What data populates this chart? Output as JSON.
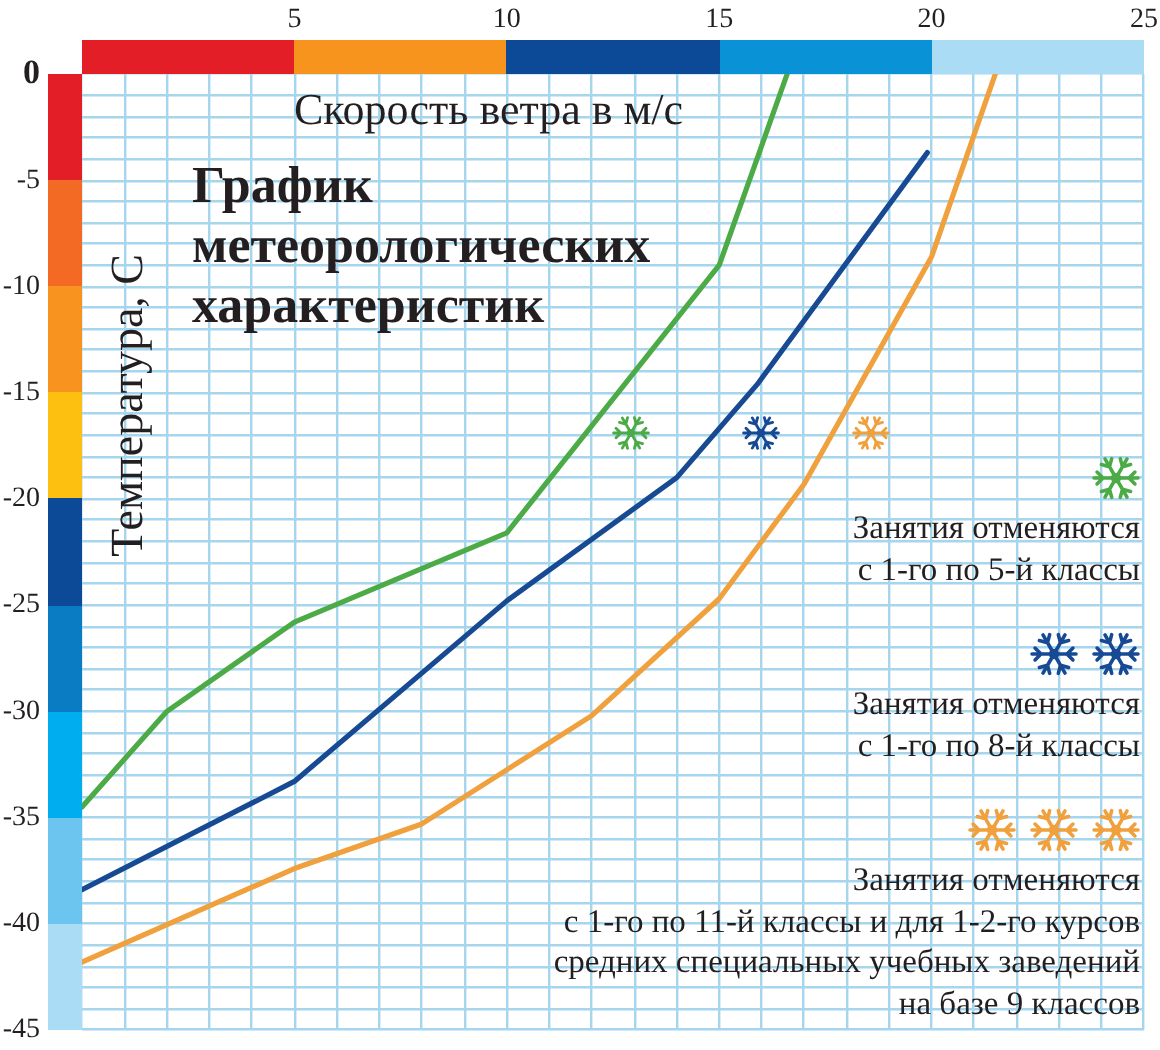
{
  "chart_data": {
    "type": "line",
    "title": "График\nметеорологических\nхарактеристик",
    "xlabel": "Скорость ветра в м/с",
    "ylabel": "Температура, С",
    "xlim": [
      0,
      25
    ],
    "xticks": [
      {
        "value": 0,
        "label": null
      },
      {
        "value": 1,
        "label": null
      },
      {
        "value": 2,
        "label": null
      },
      {
        "value": 3,
        "label": null
      },
      {
        "value": 4,
        "label": null
      },
      5,
      {
        "value": 6,
        "label": null
      },
      {
        "value": 7,
        "label": null
      },
      {
        "value": 8,
        "label": null
      },
      {
        "value": 9,
        "label": null
      },
      10,
      {
        "value": 11,
        "label": null
      },
      {
        "value": 12,
        "label": null
      },
      {
        "value": 13,
        "label": null
      },
      {
        "value": 14,
        "label": null
      },
      15,
      {
        "value": 16,
        "label": null
      },
      {
        "value": 17,
        "label": null
      },
      {
        "value": 18,
        "label": null
      },
      {
        "value": 19,
        "label": null
      },
      20,
      {
        "value": 21,
        "label": null
      },
      {
        "value": 22,
        "label": null
      },
      {
        "value": 23,
        "label": null
      },
      {
        "value": 24,
        "label": null
      },
      25
    ],
    "ylim": [
      -45,
      0
    ],
    "yticks": [
      0,
      {
        "value": -1,
        "label": null
      },
      {
        "value": -2,
        "label": null
      },
      {
        "value": -3,
        "label": null
      },
      {
        "value": -4,
        "label": null
      },
      -5,
      {
        "value": -6,
        "label": null
      },
      {
        "value": -7,
        "label": null
      },
      {
        "value": -8,
        "label": null
      },
      {
        "value": -9,
        "label": null
      },
      -10,
      {
        "value": -11,
        "label": null
      },
      {
        "value": -12,
        "label": null
      },
      {
        "value": -13,
        "label": null
      },
      {
        "value": -14,
        "label": null
      },
      -15,
      {
        "value": -16,
        "label": null
      },
      {
        "value": -17,
        "label": null
      },
      {
        "value": -18,
        "label": null
      },
      {
        "value": -19,
        "label": null
      },
      -20,
      {
        "value": -21,
        "label": null
      },
      {
        "value": -22,
        "label": null
      },
      {
        "value": -23,
        "label": null
      },
      {
        "value": -24,
        "label": null
      },
      -25,
      {
        "value": -26,
        "label": null
      },
      {
        "value": -27,
        "label": null
      },
      {
        "value": -28,
        "label": null
      },
      {
        "value": -29,
        "label": null
      },
      -30,
      {
        "value": -31,
        "label": null
      },
      {
        "value": -32,
        "label": null
      },
      {
        "value": -33,
        "label": null
      },
      {
        "value": -34,
        "label": null
      },
      -35,
      {
        "value": -36,
        "label": null
      },
      {
        "value": -37,
        "label": null
      },
      {
        "value": -38,
        "label": null
      },
      {
        "value": -39,
        "label": null
      },
      -40,
      {
        "value": -41,
        "label": null
      },
      {
        "value": -42,
        "label": null
      },
      {
        "value": -43,
        "label": null
      },
      {
        "value": -44,
        "label": null
      },
      -45
    ],
    "grid": true,
    "legend": "bottom right",
    "marker": "none",
    "line_style": "solid",
    "series": [
      {
        "name": "Занятия отменяются\nс 1-го по 5-й классы",
        "color": "#4dab47",
        "x": [
          0,
          2,
          5,
          10,
          15,
          16.6
        ],
        "values": [
          -34.5,
          -30,
          -25.8,
          -21.6,
          -9,
          0
        ]
      },
      {
        "name": "Занятия отменяются\nс 1-го по 8-й классы",
        "color": "#174a93",
        "x": [
          0,
          5,
          10,
          14,
          15.9,
          19.9
        ],
        "values": [
          -38.4,
          -33.3,
          -24.8,
          -19,
          -14.6,
          -3.7
        ]
      },
      {
        "name": "Занятия отменяются\nс 1-го по 11-й классы и для 1-2-го курсов\nсредних специальных учебных заведений\nна базе 9 классов",
        "color": "#f0a03c",
        "x": [
          0,
          5,
          8,
          12,
          15,
          17,
          20,
          21.5
        ],
        "values": [
          -41.8,
          -37.4,
          -35.3,
          -30.2,
          -24.7,
          -19.3,
          -8.6,
          0
        ]
      }
    ]
  }
}
